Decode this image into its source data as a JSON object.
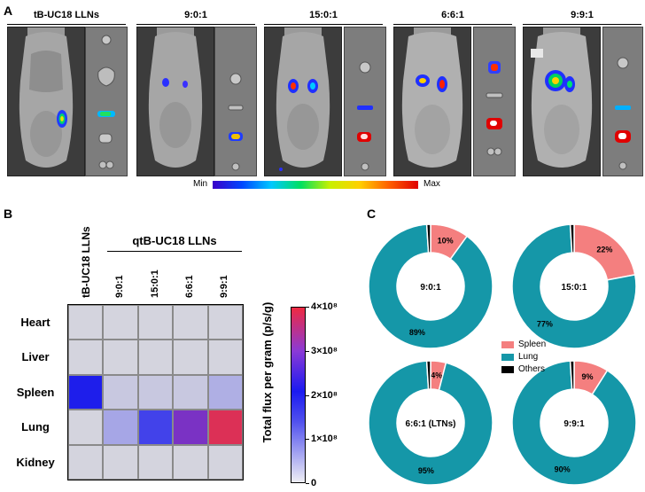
{
  "panel_a": {
    "letter": "A",
    "groups": [
      "tB-UC18 LLNs",
      "9:0:1",
      "15:0:1",
      "6:6:1",
      "9:9:1"
    ],
    "colorbar_min": "Min",
    "colorbar_max": "Max"
  },
  "panel_b": {
    "letter": "B",
    "group_header": "qtB-UC18 LLNs",
    "colorbar_title": "Total flux per gram (p/s/g)"
  },
  "panel_c": {
    "letter": "C",
    "legend": [
      {
        "label": "Spleen",
        "color": "#f47f7f"
      },
      {
        "label": "Lung",
        "color": "#1597a8"
      },
      {
        "label": "Others",
        "color": "#000000"
      }
    ]
  },
  "chart_data": [
    {
      "type": "heatmap",
      "title": "",
      "x_categories": [
        "tB-UC18 LLNs",
        "9:0:1",
        "15:0:1",
        "6:6:1",
        "9:9:1"
      ],
      "y_categories": [
        "Heart",
        "Liver",
        "Spleen",
        "Lung",
        "Kidney"
      ],
      "values": [
        [
          0,
          0,
          0,
          0,
          0
        ],
        [
          0,
          0,
          0,
          0,
          0
        ],
        [
          200000000.0,
          20000000.0,
          20000000.0,
          20000000.0,
          60000000.0
        ],
        [
          0,
          75000000.0,
          170000000.0,
          310000000.0,
          390000000.0
        ],
        [
          0,
          0,
          0,
          0,
          0
        ]
      ],
      "colorbar": {
        "range": [
          0,
          400000000
        ],
        "ticks": [
          0,
          100000000,
          200000000,
          300000000,
          400000000
        ],
        "tick_labels": [
          "0",
          "1×10⁸",
          "2×10⁸",
          "3×10⁸",
          "4×10⁸"
        ],
        "label": "Total flux per gram (p/s/g)"
      }
    },
    {
      "type": "pie",
      "style": "donut",
      "charts": [
        {
          "center_label": "9:0:1",
          "slices": [
            {
              "name": "Spleen",
              "value": 10,
              "label": "10%"
            },
            {
              "name": "Lung",
              "value": 89,
              "label": "89%"
            },
            {
              "name": "Others",
              "value": 1,
              "label": ""
            }
          ]
        },
        {
          "center_label": "15:0:1",
          "slices": [
            {
              "name": "Spleen",
              "value": 22,
              "label": "22%"
            },
            {
              "name": "Lung",
              "value": 77,
              "label": "77%"
            },
            {
              "name": "Others",
              "value": 1,
              "label": ""
            }
          ]
        },
        {
          "center_label": "6:6:1 (LTNs)",
          "slices": [
            {
              "name": "Spleen",
              "value": 4,
              "label": "4%"
            },
            {
              "name": "Lung",
              "value": 95,
              "label": "95%"
            },
            {
              "name": "Others",
              "value": 1,
              "label": ""
            }
          ]
        },
        {
          "center_label": "9:9:1",
          "slices": [
            {
              "name": "Spleen",
              "value": 9,
              "label": "9%"
            },
            {
              "name": "Lung",
              "value": 90,
              "label": "90%"
            },
            {
              "name": "Others",
              "value": 1,
              "label": ""
            }
          ]
        }
      ]
    }
  ]
}
